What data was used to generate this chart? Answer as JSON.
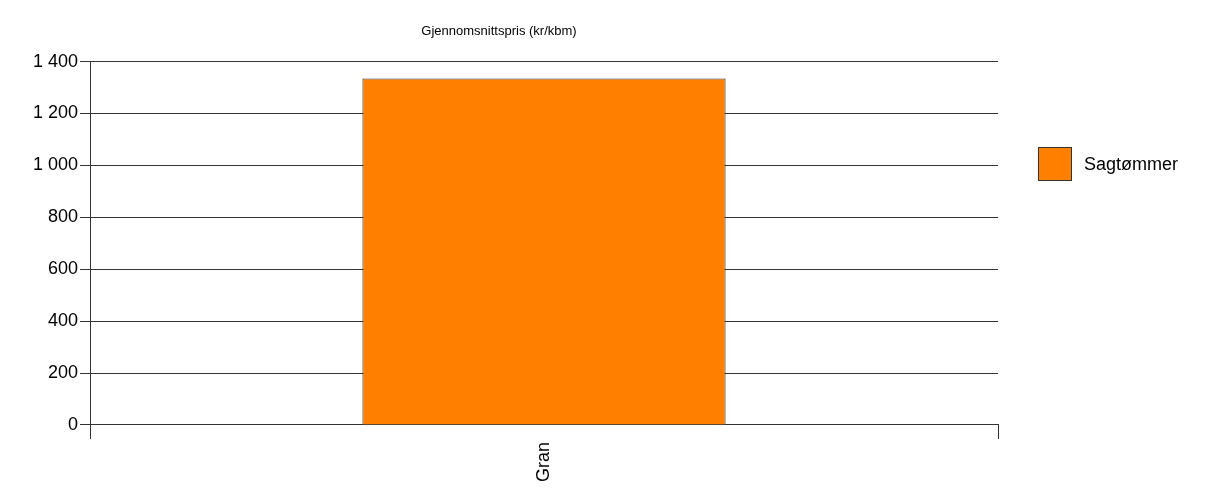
{
  "chart_data": {
    "type": "bar",
    "title": "Gjennomsnittspris (kr/kbm)",
    "categories": [
      "Gran"
    ],
    "series": [
      {
        "name": "Sagtømmer",
        "color": "#ff8000",
        "values": [
          1335
        ]
      }
    ],
    "ylim": [
      0,
      1400
    ],
    "yticks": [
      0,
      200,
      400,
      600,
      800,
      {
        "value": 1000,
        "label": "1 000"
      },
      {
        "value": 1200,
        "label": "1 200"
      },
      {
        "value": 1400,
        "label": "1 400"
      }
    ],
    "grid": "y",
    "legend": "right"
  }
}
